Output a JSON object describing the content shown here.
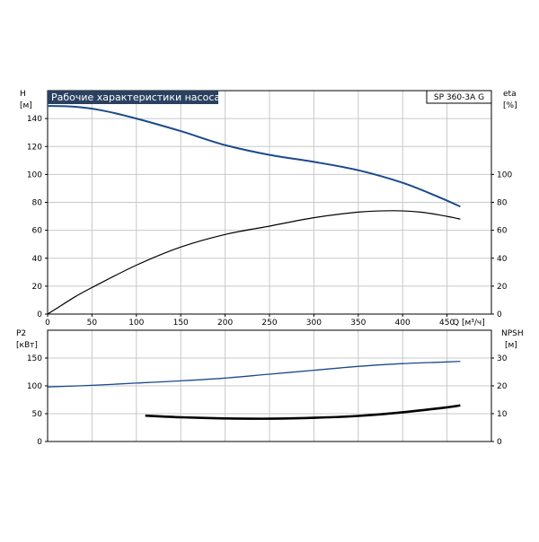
{
  "title": "Рабочие характеристики насоса",
  "model": "SP 360-3A G",
  "colors": {
    "blue": "#1a4a8a",
    "black": "#000000",
    "title_bg": "#2b4160",
    "title_fg": "#ffffff"
  },
  "chart_data": [
    {
      "type": "line",
      "name": "head-efficiency",
      "left_axis": {
        "label_top": "H",
        "label_unit": "[м]",
        "ylim": [
          0,
          160
        ],
        "ticks": [
          0,
          20,
          40,
          60,
          80,
          100,
          120,
          140
        ]
      },
      "right_axis": {
        "label_top": "eta",
        "label_unit": "[%]",
        "ylim": [
          0,
          160
        ],
        "ticks": [
          0,
          20,
          40,
          60,
          80,
          100
        ]
      },
      "x_axis": {
        "label": "Q [м³/ч]",
        "xlim": [
          0,
          500
        ],
        "ticks": [
          0,
          50,
          100,
          150,
          200,
          250,
          300,
          350,
          400,
          450
        ]
      },
      "series": [
        {
          "axis": "left",
          "color": "#1a4a8a",
          "x": [
            0,
            30,
            60,
            100,
            150,
            200,
            250,
            300,
            350,
            400,
            440,
            465
          ],
          "y": [
            149,
            148.5,
            146,
            140,
            131,
            121,
            114,
            109,
            103,
            94,
            84,
            77
          ]
        },
        {
          "axis": "right",
          "color": "#000000",
          "x": [
            0,
            10,
            30,
            50,
            100,
            150,
            200,
            250,
            300,
            350,
            390,
            420,
            450,
            465
          ],
          "y": [
            0,
            4,
            12,
            19,
            35,
            48,
            57,
            63,
            69,
            73,
            74,
            73,
            70,
            68
          ]
        }
      ]
    },
    {
      "type": "line",
      "name": "power-npsh",
      "left_axis": {
        "label_top": "P2",
        "label_unit": "[кВт]",
        "ylim": [
          0,
          200
        ],
        "ticks": [
          0,
          50,
          100,
          150
        ]
      },
      "right_axis": {
        "label_top": "NPSH",
        "label_unit": "[м]",
        "ylim": [
          0,
          40
        ],
        "ticks": [
          0,
          10,
          20,
          30
        ]
      },
      "x_axis": {
        "xlim": [
          0,
          500
        ]
      },
      "series": [
        {
          "axis": "left",
          "color": "#1a4a8a",
          "x": [
            0,
            50,
            100,
            150,
            200,
            250,
            300,
            350,
            400,
            450,
            465
          ],
          "y": [
            98,
            101,
            105,
            109,
            114,
            121,
            128,
            135,
            140,
            143,
            144
          ]
        },
        {
          "axis": "right",
          "color": "#000000",
          "x": [
            110,
            150,
            200,
            250,
            300,
            350,
            400,
            450,
            465
          ],
          "y": [
            9.3,
            8.7,
            8.3,
            8.2,
            8.5,
            9.2,
            10.5,
            12.3,
            13
          ]
        }
      ]
    }
  ]
}
